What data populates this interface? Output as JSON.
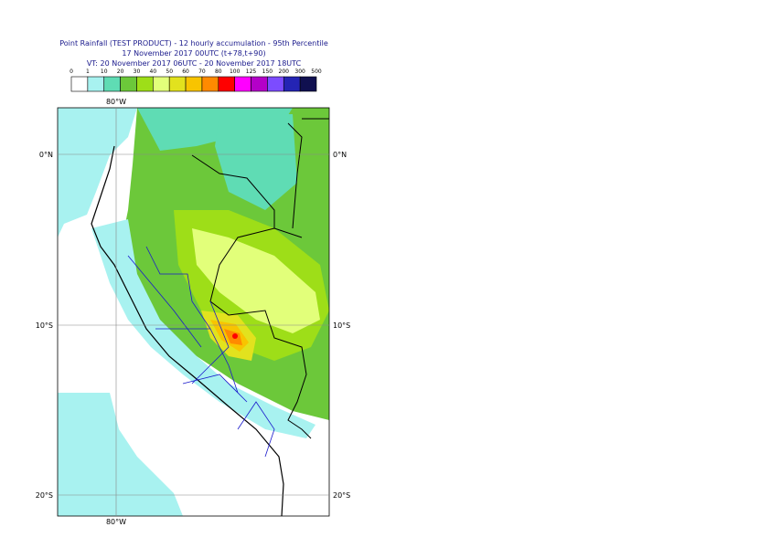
{
  "header": {
    "title": "Point Rainfall (TEST PRODUCT) - 12 hourly accumulation - 95th Percentile",
    "run": "17 November 2017 00UTC (t+78,t+90)",
    "validity": "VT: 20 November 2017 06UTC - 20 November 2017 18UTC"
  },
  "legend": {
    "thresholds": [
      0,
      1,
      10,
      20,
      30,
      40,
      50,
      60,
      70,
      80,
      100,
      125,
      150,
      200,
      300,
      500
    ],
    "colors": [
      "#ffffff",
      "#a8f2f0",
      "#5fdcb4",
      "#6cc83a",
      "#9ede18",
      "#e2ff7a",
      "#e2e21e",
      "#f8c400",
      "#ff8a00",
      "#ff0000",
      "#ff00ff",
      "#b400c8",
      "#7c4cff",
      "#2424b4",
      "#101050"
    ]
  },
  "map": {
    "lon_label": "80°W",
    "lat_labels": [
      "0°N",
      "10°S",
      "20°S"
    ]
  }
}
